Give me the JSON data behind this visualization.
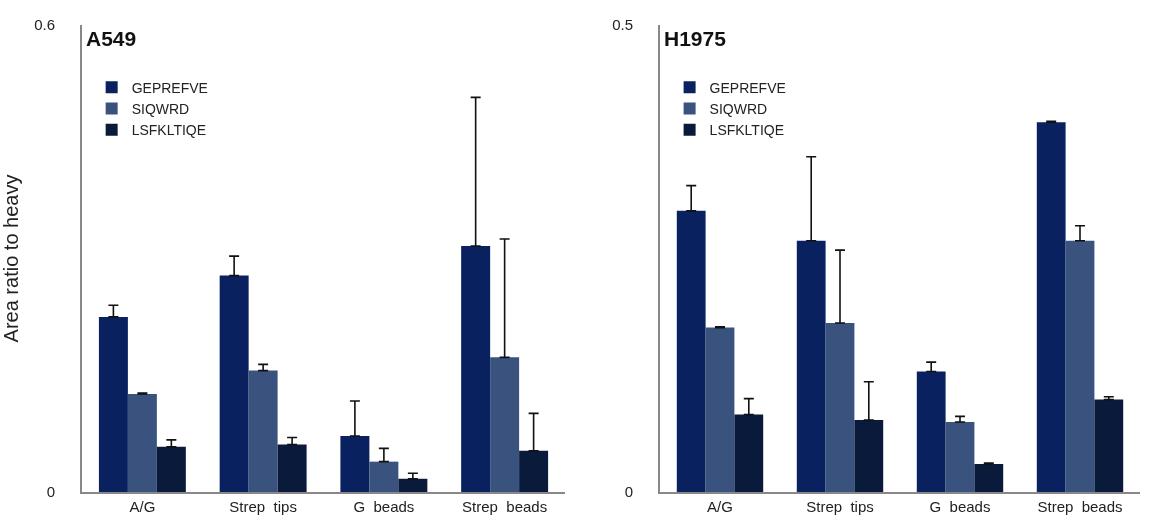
{
  "chart_data": [
    {
      "type": "bar",
      "title": "A549",
      "ylabel": "Area ratio to heavy",
      "categories": [
        "A/G",
        "Strep  tips",
        "G  beads",
        "Strep  beads"
      ],
      "ylim": [
        0,
        0.6
      ],
      "yticks": [
        0,
        0.6
      ],
      "legend": "top left",
      "series": [
        {
          "name": "GEPREFVE",
          "color": "#0a2160",
          "values": [
            0.225,
            0.278,
            0.072,
            0.316
          ],
          "errors": [
            [
              0.225,
              0.24
            ],
            [
              0.278,
              0.303
            ],
            [
              0.072,
              0.117
            ],
            [
              0.316,
              0.507
            ]
          ]
        },
        {
          "name": "SIQWRD",
          "color": "#3a527e",
          "values": [
            0.126,
            0.156,
            0.039,
            0.173
          ],
          "errors": [
            [
              0.126,
              0.127
            ],
            [
              0.156,
              0.164
            ],
            [
              0.039,
              0.056
            ],
            [
              0.173,
              0.325
            ]
          ]
        },
        {
          "name": "LSFKLTIQE",
          "color": "#0a1a3a",
          "values": [
            0.058,
            0.061,
            0.017,
            0.053
          ],
          "errors": [
            [
              0.058,
              0.067
            ],
            [
              0.061,
              0.07
            ],
            [
              0.017,
              0.024
            ],
            [
              0.053,
              0.101
            ]
          ]
        }
      ]
    },
    {
      "type": "bar",
      "title": "H1975",
      "categories": [
        "A/G",
        "Strep  tips",
        "G  beads",
        "Strep  beads"
      ],
      "ylim": [
        0,
        0.5
      ],
      "yticks": [
        0,
        0.5
      ],
      "legend": "top left",
      "series": [
        {
          "name": "GEPREFVE",
          "color": "#0a2160",
          "values": [
            0.301,
            0.269,
            0.129,
            0.396
          ],
          "errors": [
            [
              0.301,
              0.328
            ],
            [
              0.269,
              0.359
            ],
            [
              0.129,
              0.139
            ],
            [
              0.396,
              0.397
            ]
          ]
        },
        {
          "name": "SIQWRD",
          "color": "#3a527e",
          "values": [
            0.176,
            0.181,
            0.075,
            0.269
          ],
          "errors": [
            [
              0.176,
              0.177
            ],
            [
              0.181,
              0.259
            ],
            [
              0.075,
              0.081
            ],
            [
              0.269,
              0.285
            ]
          ]
        },
        {
          "name": "LSFKLTIQE",
          "color": "#0a1a3a",
          "values": [
            0.083,
            0.077,
            0.03,
            0.099
          ],
          "errors": [
            [
              0.083,
              0.1
            ],
            [
              0.077,
              0.118
            ],
            [
              0.03,
              0.031
            ],
            [
              0.099,
              0.102
            ]
          ]
        }
      ]
    }
  ]
}
